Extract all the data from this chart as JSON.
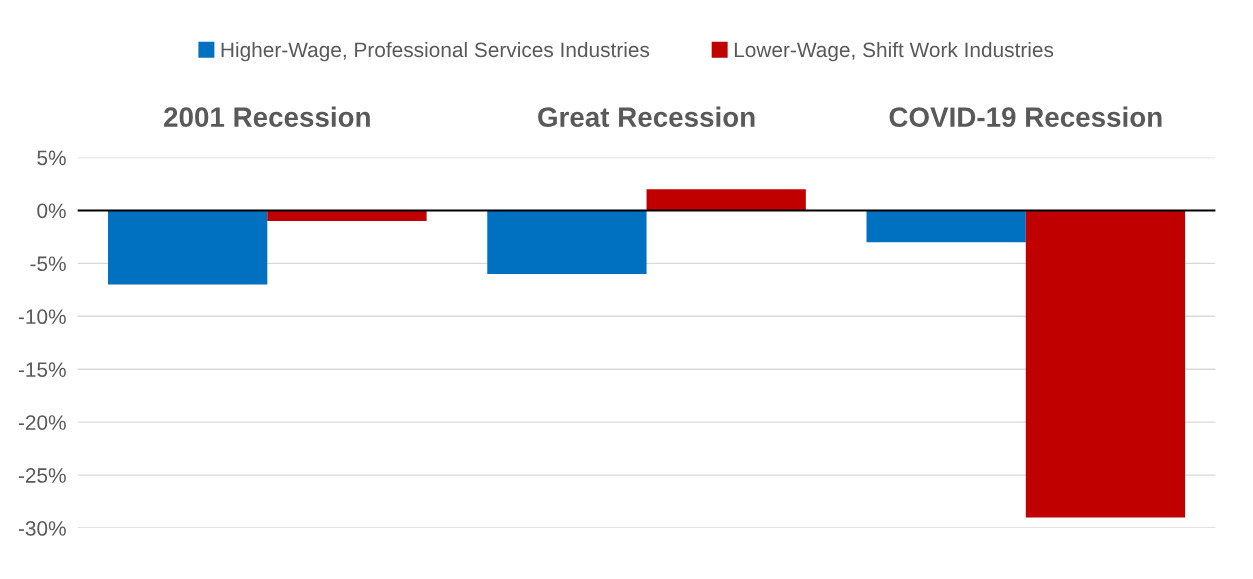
{
  "chart_data": {
    "type": "bar",
    "categories": [
      "2001 Recession",
      "Great Recession",
      "COVID-19 Recession"
    ],
    "series": [
      {
        "name": "Higher-Wage, Professional Services Industries",
        "color": "#0070c0",
        "values": [
          -7,
          -6,
          -3
        ]
      },
      {
        "name": "Lower-Wage, Shift Work Industries",
        "color": "#c00000",
        "values": [
          -1,
          2,
          -29
        ]
      }
    ],
    "ylim": [
      -30,
      5
    ],
    "yticks": [
      {
        "value": 5,
        "label": "5%"
      },
      {
        "value": 0,
        "label": "0%"
      },
      {
        "value": -5,
        "label": "-5%"
      },
      {
        "value": -10,
        "label": "-10%"
      },
      {
        "value": -15,
        "label": "-15%"
      },
      {
        "value": -20,
        "label": "-20%"
      },
      {
        "value": -25,
        "label": "-25%"
      },
      {
        "value": -30,
        "label": "-30%"
      }
    ],
    "grid": "y",
    "legend": "top"
  }
}
